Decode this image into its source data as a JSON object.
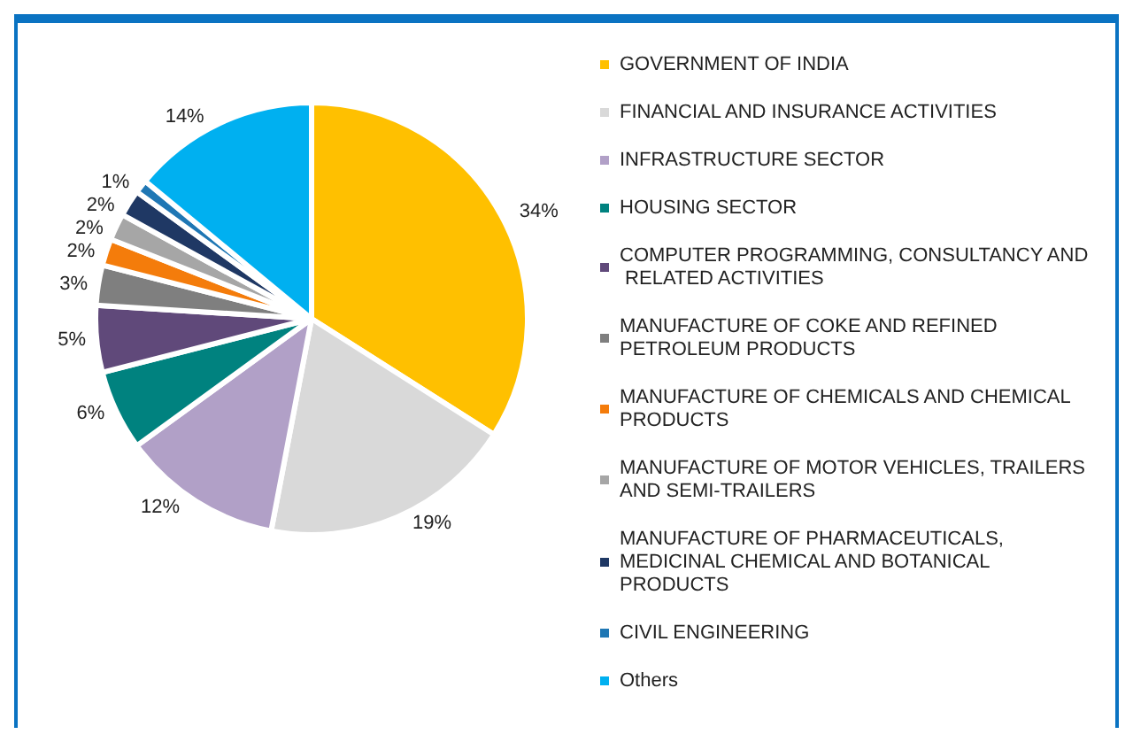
{
  "chart_data": {
    "type": "pie",
    "categories": [
      "GOVERNMENT OF INDIA",
      "FINANCIAL AND INSURANCE ACTIVITIES",
      "INFRASTRUCTURE SECTOR",
      "HOUSING SECTOR",
      "COMPUTER PROGRAMMING, CONSULTANCY AND RELATED ACTIVITIES",
      "MANUFACTURE OF COKE AND REFINED PETROLEUM PRODUCTS",
      "MANUFACTURE OF CHEMICALS AND CHEMICAL PRODUCTS",
      "MANUFACTURE OF MOTOR VEHICLES, TRAILERS AND SEMI-TRAILERS",
      "MANUFACTURE OF PHARMACEUTICALS, MEDICINAL CHEMICAL AND BOTANICAL PRODUCTS",
      "CIVIL ENGINEERING",
      "Others"
    ],
    "values": [
      34,
      19,
      12,
      6,
      5,
      3,
      2,
      2,
      2,
      1,
      14
    ],
    "value_labels": [
      "34%",
      "19%",
      "12%",
      "6%",
      "5%",
      "3%",
      "2%",
      "2%",
      "2%",
      "1%",
      "14%"
    ],
    "colors": [
      "#ffc000",
      "#d9d9d9",
      "#b1a0c7",
      "#00827f",
      "#60497a",
      "#7f7f7f",
      "#f47c0b",
      "#a6a6a6",
      "#1f3864",
      "#1f77b4",
      "#00b0f0"
    ],
    "legend": "right"
  }
}
